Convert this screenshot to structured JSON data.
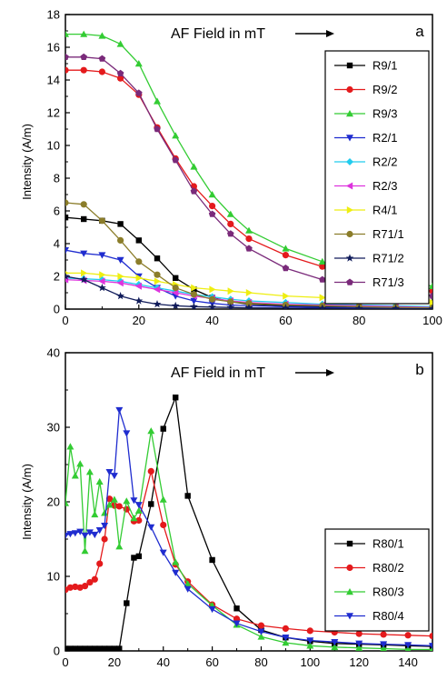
{
  "chart_data": [
    {
      "type": "line",
      "panel_label": "a",
      "annotation": "AF Field in mT",
      "ylabel": "Intensity (A/m)",
      "xlabel": "",
      "xlim": [
        0,
        100
      ],
      "ylim": [
        0,
        18
      ],
      "xticks": [
        0,
        20,
        40,
        60,
        80,
        100
      ],
      "yticks": [
        0,
        2,
        4,
        6,
        8,
        10,
        12,
        14,
        16,
        18
      ],
      "legend_position": "right",
      "series": [
        {
          "name": "R9/1",
          "marker": "square",
          "color": "#000000",
          "x": [
            0,
            5,
            10,
            15,
            20,
            25,
            30,
            35,
            40,
            45,
            50,
            60,
            70,
            80,
            90,
            100
          ],
          "y": [
            5.6,
            5.5,
            5.4,
            5.2,
            4.2,
            3.1,
            1.9,
            1.2,
            0.7,
            0.45,
            0.3,
            0.2,
            0.15,
            0.1,
            0.08,
            0.06
          ]
        },
        {
          "name": "R9/2",
          "marker": "circle",
          "color": "#e41a1c",
          "x": [
            0,
            5,
            10,
            15,
            20,
            25,
            30,
            35,
            40,
            45,
            50,
            60,
            70,
            80,
            90,
            100
          ],
          "y": [
            14.6,
            14.6,
            14.5,
            14.1,
            13.1,
            11.1,
            9.2,
            7.5,
            6.3,
            5.2,
            4.3,
            3.3,
            2.6,
            2.0,
            1.5,
            1.1
          ]
        },
        {
          "name": "R9/3",
          "marker": "triangle-up",
          "color": "#33cc33",
          "x": [
            0,
            5,
            10,
            15,
            20,
            25,
            30,
            35,
            40,
            45,
            50,
            60,
            70,
            80,
            90,
            100
          ],
          "y": [
            16.8,
            16.8,
            16.7,
            16.2,
            15.0,
            12.7,
            10.6,
            8.7,
            7.0,
            5.8,
            4.8,
            3.7,
            2.9,
            2.3,
            1.8,
            1.4
          ]
        },
        {
          "name": "R2/1",
          "marker": "triangle-down",
          "color": "#1f2ccf",
          "x": [
            0,
            5,
            10,
            15,
            20,
            25,
            30,
            35,
            40,
            45,
            50,
            60,
            70,
            80,
            90,
            100
          ],
          "y": [
            3.6,
            3.4,
            3.3,
            3.0,
            2.0,
            1.3,
            0.8,
            0.5,
            0.35,
            0.25,
            0.2,
            0.15,
            0.1,
            0.08,
            0.06,
            0.05
          ]
        },
        {
          "name": "R2/2",
          "marker": "diamond",
          "color": "#22ccee",
          "x": [
            0,
            5,
            10,
            15,
            20,
            25,
            30,
            35,
            40,
            45,
            50,
            60,
            70,
            80,
            90,
            100
          ],
          "y": [
            1.9,
            1.85,
            1.8,
            1.7,
            1.5,
            1.3,
            1.1,
            0.9,
            0.75,
            0.6,
            0.5,
            0.4,
            0.3,
            0.25,
            0.2,
            0.15
          ]
        },
        {
          "name": "R2/3",
          "marker": "triangle-left",
          "color": "#dd33dd",
          "x": [
            0,
            5,
            10,
            15,
            20,
            25,
            30,
            35,
            40,
            45,
            50,
            60,
            70,
            80,
            90,
            100
          ],
          "y": [
            1.8,
            1.75,
            1.7,
            1.6,
            1.4,
            1.2,
            1.0,
            0.8,
            0.65,
            0.5,
            0.4,
            0.3,
            0.25,
            0.2,
            0.15,
            0.1
          ]
        },
        {
          "name": "R4/1",
          "marker": "triangle-right",
          "color": "#eeee11",
          "x": [
            0,
            5,
            10,
            15,
            20,
            25,
            30,
            35,
            40,
            45,
            50,
            60,
            70,
            80,
            90,
            100
          ],
          "y": [
            2.2,
            2.2,
            2.1,
            2.0,
            1.9,
            1.7,
            1.5,
            1.3,
            1.2,
            1.1,
            1.0,
            0.8,
            0.7,
            0.6,
            0.5,
            0.4
          ]
        },
        {
          "name": "R71/1",
          "marker": "circle",
          "color": "#8b7d2a",
          "x": [
            0,
            5,
            10,
            15,
            20,
            25,
            30,
            35,
            40,
            45,
            50,
            60,
            70,
            80,
            90,
            100
          ],
          "y": [
            6.5,
            6.4,
            5.4,
            4.2,
            2.9,
            2.1,
            1.3,
            0.9,
            0.6,
            0.45,
            0.35,
            0.25,
            0.2,
            0.15,
            0.1,
            0.08
          ]
        },
        {
          "name": "R71/2",
          "marker": "star",
          "color": "#101b5a",
          "x": [
            0,
            5,
            10,
            15,
            20,
            25,
            30,
            35,
            40,
            45,
            50,
            60,
            70,
            80,
            90,
            100
          ],
          "y": [
            2.0,
            1.8,
            1.3,
            0.8,
            0.5,
            0.3,
            0.2,
            0.15,
            0.12,
            0.1,
            0.08,
            0.06,
            0.05,
            0.04,
            0.03,
            0.02
          ]
        },
        {
          "name": "R71/3",
          "marker": "pentagon",
          "color": "#7a2a7a",
          "x": [
            0,
            5,
            10,
            15,
            20,
            25,
            30,
            35,
            40,
            45,
            50,
            60,
            70,
            80,
            90,
            100
          ],
          "y": [
            15.4,
            15.4,
            15.3,
            14.4,
            13.2,
            11.0,
            9.1,
            7.2,
            5.8,
            4.6,
            3.7,
            2.5,
            1.8,
            1.3,
            1.0,
            0.8
          ]
        }
      ]
    },
    {
      "type": "line",
      "panel_label": "b",
      "annotation": "AF Field in mT",
      "ylabel": "Intensity (A/m)",
      "xlabel": "",
      "xlim": [
        0,
        150
      ],
      "ylim": [
        0,
        40
      ],
      "xticks": [
        0,
        20,
        40,
        60,
        80,
        100,
        120,
        140
      ],
      "yticks": [
        0,
        10,
        20,
        30,
        40
      ],
      "legend_position": "lower-right",
      "series": [
        {
          "name": "R80/1",
          "marker": "square",
          "color": "#000000",
          "x": [
            0,
            2,
            4,
            6,
            8,
            10,
            12,
            14,
            16,
            18,
            20,
            22,
            25,
            28,
            30,
            35,
            40,
            45,
            50,
            60,
            70,
            80,
            90,
            100,
            110,
            120,
            130,
            140,
            150
          ],
          "y": [
            0.3,
            0.3,
            0.3,
            0.3,
            0.3,
            0.3,
            0.3,
            0.3,
            0.3,
            0.3,
            0.3,
            0.3,
            6.4,
            12.5,
            12.7,
            19.7,
            29.8,
            34.0,
            20.8,
            12.2,
            5.7,
            2.8,
            1.8,
            1.3,
            1.0,
            0.9,
            0.8,
            0.7,
            0.6
          ]
        },
        {
          "name": "R80/2",
          "marker": "circle",
          "color": "#e41a1c",
          "x": [
            0,
            2,
            4,
            6,
            8,
            10,
            12,
            14,
            16,
            18,
            20,
            22,
            25,
            28,
            30,
            35,
            40,
            45,
            50,
            60,
            70,
            80,
            90,
            100,
            110,
            120,
            130,
            140,
            150
          ],
          "y": [
            8.2,
            8.5,
            8.6,
            8.5,
            8.7,
            9.2,
            9.6,
            11.7,
            15.0,
            20.4,
            19.5,
            19.4,
            19.0,
            17.4,
            17.5,
            24.1,
            16.9,
            11.6,
            9.3,
            6.2,
            4.3,
            3.4,
            3.0,
            2.7,
            2.5,
            2.3,
            2.2,
            2.1,
            2.0
          ]
        },
        {
          "name": "R80/3",
          "marker": "triangle-up",
          "color": "#33cc33",
          "x": [
            0,
            2,
            4,
            6,
            8,
            10,
            12,
            14,
            16,
            18,
            20,
            22,
            25,
            28,
            30,
            35,
            40,
            45,
            50,
            60,
            70,
            80,
            90,
            100,
            110,
            120,
            130,
            140,
            150
          ],
          "y": [
            19.8,
            27.4,
            23.5,
            25.1,
            13.4,
            24.0,
            18.3,
            22.7,
            18.5,
            19.6,
            20.3,
            14.0,
            20.1,
            17.8,
            18.8,
            29.5,
            20.3,
            11.9,
            9.0,
            6.1,
            3.5,
            1.9,
            1.1,
            0.7,
            0.5,
            0.4,
            0.3,
            0.2,
            0.2
          ]
        },
        {
          "name": "R80/4",
          "marker": "triangle-down",
          "color": "#1f2ccf",
          "x": [
            0,
            2,
            4,
            6,
            8,
            10,
            12,
            14,
            16,
            18,
            20,
            22,
            25,
            28,
            30,
            35,
            40,
            45,
            50,
            60,
            70,
            80,
            90,
            100,
            110,
            120,
            130,
            140,
            150
          ],
          "y": [
            15.5,
            15.7,
            15.8,
            16.0,
            15.5,
            15.9,
            15.6,
            16.2,
            16.8,
            24.0,
            23.5,
            32.3,
            29.2,
            20.2,
            19.6,
            16.6,
            13.2,
            10.5,
            8.3,
            5.6,
            3.7,
            2.6,
            1.8,
            1.4,
            1.2,
            1.0,
            0.9,
            0.8,
            0.7
          ]
        }
      ]
    }
  ]
}
